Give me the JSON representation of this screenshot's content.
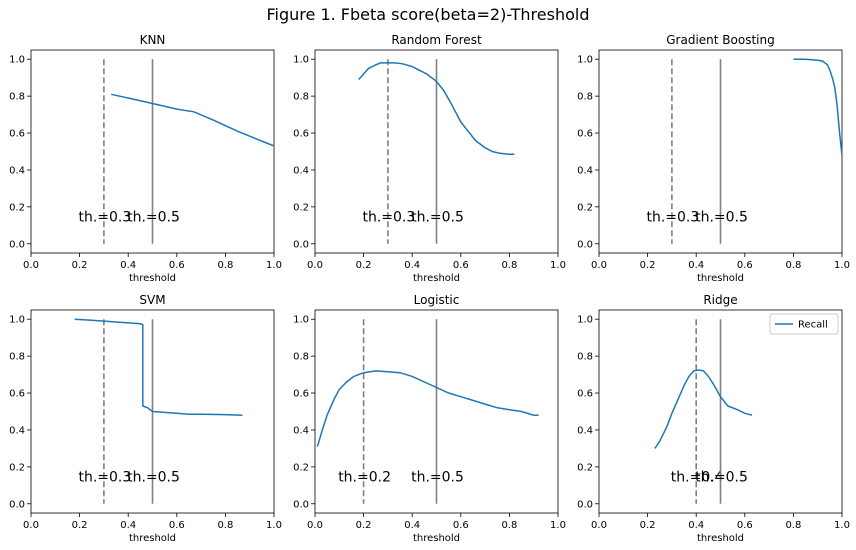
{
  "figure_title": "Figure 1. Fbeta score(beta=2)-Threshold",
  "colors": {
    "series": "#1f77b4",
    "threshold_line": "#808080"
  },
  "chart_data": [
    {
      "type": "line",
      "title": "KNN",
      "xlabel": "threshold",
      "ylabel": "",
      "xlim": [
        0,
        1
      ],
      "ylim": [
        -0.05,
        1.05
      ],
      "xticks": [
        "0.0",
        "0.2",
        "0.4",
        "0.6",
        "0.8",
        "1.0"
      ],
      "yticks": [
        "0.0",
        "0.2",
        "0.4",
        "0.6",
        "0.8",
        "1.0"
      ],
      "series": [
        {
          "x": [
            0.33,
            0.4,
            0.5,
            0.6,
            0.67,
            0.75,
            0.85,
            1.0
          ],
          "y": [
            0.81,
            0.79,
            0.76,
            0.73,
            0.715,
            0.67,
            0.61,
            0.53
          ]
        }
      ],
      "thresholds": [
        {
          "x": 0.3,
          "style": "dashed",
          "label": "th.=0.3"
        },
        {
          "x": 0.5,
          "style": "solid",
          "label": "th.=0.5"
        }
      ],
      "legend": null
    },
    {
      "type": "line",
      "title": "Random Forest",
      "xlabel": "threshold",
      "ylabel": "",
      "xlim": [
        0,
        1
      ],
      "ylim": [
        -0.05,
        1.05
      ],
      "xticks": [
        "0.0",
        "0.2",
        "0.4",
        "0.6",
        "0.8",
        "1.0"
      ],
      "yticks": [
        "0.0",
        "0.2",
        "0.4",
        "0.6",
        "0.8",
        "1.0"
      ],
      "series": [
        {
          "x": [
            0.18,
            0.2,
            0.22,
            0.25,
            0.27,
            0.3,
            0.33,
            0.36,
            0.4,
            0.43,
            0.46,
            0.5,
            0.53,
            0.56,
            0.6,
            0.63,
            0.66,
            0.7,
            0.73,
            0.76,
            0.8,
            0.82
          ],
          "y": [
            0.89,
            0.92,
            0.95,
            0.97,
            0.98,
            0.98,
            0.98,
            0.975,
            0.96,
            0.94,
            0.92,
            0.88,
            0.83,
            0.76,
            0.66,
            0.61,
            0.56,
            0.52,
            0.5,
            0.49,
            0.485,
            0.485
          ]
        }
      ],
      "thresholds": [
        {
          "x": 0.3,
          "style": "dashed",
          "label": "th.=0.3"
        },
        {
          "x": 0.5,
          "style": "solid",
          "label": "th.=0.5"
        }
      ],
      "legend": null
    },
    {
      "type": "line",
      "title": "Gradient Boosting",
      "xlabel": "threshold",
      "ylabel": "",
      "xlim": [
        0,
        1
      ],
      "ylim": [
        -0.05,
        1.05
      ],
      "xticks": [
        "0.0",
        "0.2",
        "0.4",
        "0.6",
        "0.8",
        "1.0"
      ],
      "yticks": [
        "0.0",
        "0.2",
        "0.4",
        "0.6",
        "0.8",
        "1.0"
      ],
      "series": [
        {
          "x": [
            0.8,
            0.85,
            0.9,
            0.92,
            0.94,
            0.95,
            0.96,
            0.97,
            0.98,
            0.99,
            1.0
          ],
          "y": [
            1.0,
            1.0,
            0.995,
            0.99,
            0.97,
            0.94,
            0.9,
            0.85,
            0.75,
            0.6,
            0.48
          ]
        }
      ],
      "thresholds": [
        {
          "x": 0.3,
          "style": "dashed",
          "label": "th.=0.3"
        },
        {
          "x": 0.5,
          "style": "solid",
          "label": "th.=0.5"
        }
      ],
      "legend": null
    },
    {
      "type": "line",
      "title": "SVM",
      "xlabel": "threshold",
      "ylabel": "",
      "xlim": [
        0,
        1
      ],
      "ylim": [
        -0.05,
        1.05
      ],
      "xticks": [
        "0.0",
        "0.2",
        "0.4",
        "0.6",
        "0.8",
        "1.0"
      ],
      "yticks": [
        "0.0",
        "0.2",
        "0.4",
        "0.6",
        "0.8",
        "1.0"
      ],
      "series": [
        {
          "x": [
            0.18,
            0.25,
            0.3,
            0.35,
            0.4,
            0.45,
            0.46,
            0.46,
            0.48,
            0.5,
            0.55,
            0.6,
            0.65,
            0.7,
            0.8,
            0.87
          ],
          "y": [
            1.0,
            0.995,
            0.99,
            0.985,
            0.98,
            0.975,
            0.97,
            0.53,
            0.52,
            0.5,
            0.495,
            0.49,
            0.485,
            0.485,
            0.483,
            0.48
          ]
        }
      ],
      "thresholds": [
        {
          "x": 0.3,
          "style": "dashed",
          "label": "th.=0.3"
        },
        {
          "x": 0.5,
          "style": "solid",
          "label": "th.=0.5"
        }
      ],
      "legend": null
    },
    {
      "type": "line",
      "title": "Logistic",
      "xlabel": "threshold",
      "ylabel": "",
      "xlim": [
        0,
        1
      ],
      "ylim": [
        -0.05,
        1.05
      ],
      "xticks": [
        "0.0",
        "0.2",
        "0.4",
        "0.6",
        "0.8",
        "1.0"
      ],
      "yticks": [
        "0.0",
        "0.2",
        "0.4",
        "0.6",
        "0.8",
        "1.0"
      ],
      "series": [
        {
          "x": [
            0.01,
            0.03,
            0.05,
            0.08,
            0.1,
            0.13,
            0.16,
            0.2,
            0.25,
            0.3,
            0.35,
            0.4,
            0.45,
            0.5,
            0.55,
            0.6,
            0.65,
            0.7,
            0.75,
            0.8,
            0.85,
            0.9,
            0.92
          ],
          "y": [
            0.31,
            0.4,
            0.48,
            0.57,
            0.62,
            0.66,
            0.69,
            0.71,
            0.72,
            0.715,
            0.71,
            0.69,
            0.66,
            0.63,
            0.6,
            0.58,
            0.56,
            0.54,
            0.52,
            0.51,
            0.5,
            0.48,
            0.48
          ]
        }
      ],
      "thresholds": [
        {
          "x": 0.2,
          "style": "dashed",
          "label": "th.=0.2"
        },
        {
          "x": 0.5,
          "style": "solid",
          "label": "th.=0.5"
        }
      ],
      "legend": null
    },
    {
      "type": "line",
      "title": "Ridge",
      "xlabel": "threshold",
      "ylabel": "",
      "xlim": [
        0,
        1
      ],
      "ylim": [
        -0.05,
        1.05
      ],
      "xticks": [
        "0.0",
        "0.2",
        "0.4",
        "0.6",
        "0.8",
        "1.0"
      ],
      "yticks": [
        "0.0",
        "0.2",
        "0.4",
        "0.6",
        "0.8",
        "1.0"
      ],
      "series": [
        {
          "name": "Recall",
          "x": [
            0.23,
            0.25,
            0.28,
            0.3,
            0.33,
            0.35,
            0.37,
            0.39,
            0.41,
            0.43,
            0.45,
            0.47,
            0.5,
            0.53,
            0.57,
            0.6,
            0.63
          ],
          "y": [
            0.3,
            0.34,
            0.42,
            0.49,
            0.58,
            0.64,
            0.69,
            0.72,
            0.725,
            0.72,
            0.69,
            0.65,
            0.58,
            0.53,
            0.51,
            0.49,
            0.48
          ]
        }
      ],
      "thresholds": [
        {
          "x": 0.4,
          "style": "dashed",
          "label": "th.=0.4"
        },
        {
          "x": 0.5,
          "style": "solid",
          "label": "th.=0.5"
        }
      ],
      "legend": {
        "position": "upper-right",
        "entries": [
          "Recall"
        ]
      }
    }
  ]
}
